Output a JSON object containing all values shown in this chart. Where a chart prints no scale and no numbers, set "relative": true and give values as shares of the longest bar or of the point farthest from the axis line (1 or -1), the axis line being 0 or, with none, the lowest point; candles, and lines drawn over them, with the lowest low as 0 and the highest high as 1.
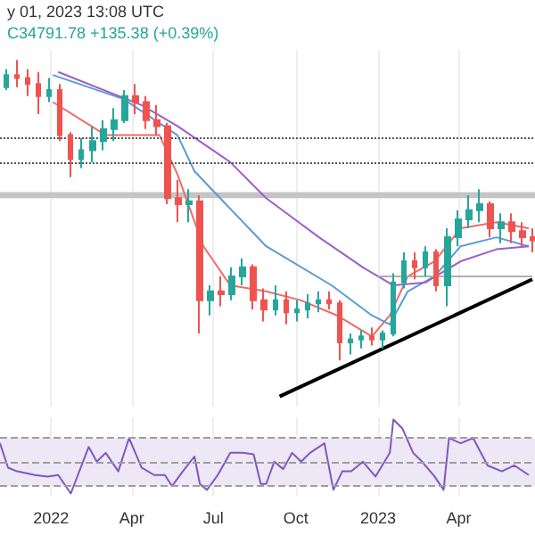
{
  "chart_data": [
    {
      "type": "candlestick",
      "relative": true,
      "annotations": [
        "y 01, 2023 13:08 UTC",
        "C34791.78 +135.38 (+0.39%)"
      ],
      "x": [
        "2021-11-12",
        "2021-11-24",
        "2021-12-06",
        "2021-12-18",
        "2021-12-30",
        "2022-01-11",
        "2022-01-23",
        "2022-02-04",
        "2022-02-16",
        "2022-02-28",
        "2022-03-12",
        "2022-03-24",
        "2022-04-05",
        "2022-04-17",
        "2022-04-29",
        "2022-05-11",
        "2022-05-23",
        "2022-06-04",
        "2022-06-16",
        "2022-06-28",
        "2022-07-10",
        "2022-07-22",
        "2022-08-03",
        "2022-08-15",
        "2022-08-27",
        "2022-09-08",
        "2022-09-20",
        "2022-10-02",
        "2022-10-14",
        "2022-10-26",
        "2022-11-07",
        "2022-11-19",
        "2022-12-01",
        "2022-12-13",
        "2022-12-25",
        "2023-01-06",
        "2023-01-18",
        "2023-01-30",
        "2023-02-11",
        "2023-02-23",
        "2023-03-07",
        "2023-03-19",
        "2023-03-31",
        "2023-04-12",
        "2023-04-24",
        "2023-05-06",
        "2023-05-18",
        "2023-05-30",
        "2023-06-11",
        "2023-06-23"
      ],
      "ohlc": [
        [
          0.91,
          0.97,
          0.9,
          0.95
        ],
        [
          0.95,
          1,
          0.91,
          0.94
        ],
        [
          0.94,
          0.97,
          0.88,
          0.92
        ],
        [
          0.92,
          0.96,
          0.82,
          0.88
        ],
        [
          0.88,
          0.94,
          0.86,
          0.9
        ],
        [
          0.9,
          0.92,
          0.73,
          0.75
        ],
        [
          0.75,
          0.76,
          0.61,
          0.67
        ],
        [
          0.67,
          0.74,
          0.64,
          0.7
        ],
        [
          0.7,
          0.78,
          0.66,
          0.73
        ],
        [
          0.73,
          0.8,
          0.7,
          0.77
        ],
        [
          0.77,
          0.84,
          0.73,
          0.8
        ],
        [
          0.8,
          0.9,
          0.79,
          0.88
        ],
        [
          0.88,
          0.92,
          0.82,
          0.86
        ],
        [
          0.86,
          0.88,
          0.77,
          0.8
        ],
        [
          0.8,
          0.85,
          0.75,
          0.78
        ],
        [
          0.78,
          0.79,
          0.52,
          0.54
        ],
        [
          0.54,
          0.6,
          0.46,
          0.52
        ],
        [
          0.52,
          0.57,
          0.46,
          0.53
        ],
        [
          0.53,
          0.55,
          0.09,
          0.2
        ],
        [
          0.2,
          0.25,
          0.15,
          0.23
        ],
        [
          0.23,
          0.28,
          0.18,
          0.22
        ],
        [
          0.22,
          0.31,
          0.2,
          0.28
        ],
        [
          0.28,
          0.34,
          0.25,
          0.31
        ],
        [
          0.31,
          0.32,
          0.17,
          0.2
        ],
        [
          0.2,
          0.24,
          0.13,
          0.17
        ],
        [
          0.17,
          0.25,
          0.15,
          0.2
        ],
        [
          0.2,
          0.23,
          0.12,
          0.16
        ],
        [
          0.16,
          0.2,
          0.13,
          0.17
        ],
        [
          0.17,
          0.22,
          0.14,
          0.19
        ],
        [
          0.19,
          0.23,
          0.16,
          0.2
        ],
        [
          0.2,
          0.23,
          0.17,
          0.19
        ],
        [
          0.19,
          0.2,
          0,
          0.06
        ],
        [
          0.06,
          0.09,
          0.02,
          0.07
        ],
        [
          0.07,
          0.1,
          0.04,
          0.08
        ],
        [
          0.08,
          0.11,
          0.05,
          0.07
        ],
        [
          0.07,
          0.1,
          0.04,
          0.09
        ],
        [
          0.09,
          0.29,
          0.08,
          0.26
        ],
        [
          0.26,
          0.36,
          0.24,
          0.33
        ],
        [
          0.33,
          0.36,
          0.27,
          0.31
        ],
        [
          0.31,
          0.38,
          0.28,
          0.36
        ],
        [
          0.36,
          0.37,
          0.23,
          0.25
        ],
        [
          0.25,
          0.44,
          0.18,
          0.41
        ],
        [
          0.41,
          0.5,
          0.38,
          0.47
        ],
        [
          0.47,
          0.55,
          0.44,
          0.5
        ],
        [
          0.5,
          0.57,
          0.46,
          0.52
        ],
        [
          0.52,
          0.53,
          0.41,
          0.44
        ],
        [
          0.44,
          0.49,
          0.39,
          0.46
        ],
        [
          0.46,
          0.49,
          0.39,
          0.43
        ],
        [
          0.43,
          0.46,
          0.38,
          0.41
        ],
        [
          0.41,
          0.44,
          0.36,
          0.4
        ]
      ],
      "colors": [
        "#26a69a",
        "#ef5350",
        "#ef5350",
        "#ef5350",
        "#26a69a",
        "#ef5350",
        "#ef5350",
        "#26a69a",
        "#26a69a",
        "#26a69a",
        "#26a69a",
        "#26a69a",
        "#ef5350",
        "#ef5350",
        "#ef5350",
        "#ef5350",
        "#ef5350",
        "#26a69a",
        "#ef5350",
        "#26a69a",
        "#ef5350",
        "#26a69a",
        "#26a69a",
        "#ef5350",
        "#ef5350",
        "#26a69a",
        "#ef5350",
        "#26a69a",
        "#26a69a",
        "#26a69a",
        "#ef5350",
        "#ef5350",
        "#26a69a",
        "#26a69a",
        "#ef5350",
        "#26a69a",
        "#26a69a",
        "#26a69a",
        "#ef5350",
        "#26a69a",
        "#ef5350",
        "#26a69a",
        "#26a69a",
        "#26a69a",
        "#26a69a",
        "#ef5350",
        "#26a69a",
        "#ef5350",
        "#ef5350",
        "#ef5350"
      ],
      "series": [
        {
          "type": "line",
          "color": "#f06a6a",
          "x": [
            "2022-01-03",
            "2022-03-03",
            "2022-05-02",
            "2022-05-22",
            "2022-06-20",
            "2022-07-20",
            "2022-08-29",
            "2022-10-07",
            "2022-11-16",
            "2022-12-25",
            "2023-01-14",
            "2023-02-03",
            "2023-03-05",
            "2023-04-03",
            "2023-05-13",
            "2023-06-18"
          ],
          "values": [
            0.86,
            0.75,
            0.75,
            0.62,
            0.38,
            0.25,
            0.23,
            0.2,
            0.15,
            0.08,
            0.15,
            0.28,
            0.33,
            0.44,
            0.46,
            0.44
          ]
        },
        {
          "type": "line",
          "color": "#5b9bd5",
          "x": [
            "2022-01-03",
            "2022-03-23",
            "2022-05-22",
            "2022-06-10",
            "2022-08-29",
            "2022-11-10",
            "2022-12-25",
            "2023-01-14",
            "2023-02-03",
            "2023-03-05",
            "2023-04-03",
            "2023-05-13",
            "2023-06-18"
          ],
          "values": [
            0.95,
            0.87,
            0.75,
            0.63,
            0.38,
            0.25,
            0.15,
            0.12,
            0.23,
            0.28,
            0.38,
            0.41,
            0.38
          ]
        },
        {
          "type": "line",
          "color": "#9c5fc9",
          "x": [
            "2022-01-09",
            "2022-04-12",
            "2022-05-22",
            "2022-07-20",
            "2022-08-29",
            "2022-10-27",
            "2022-12-15",
            "2023-01-18",
            "2023-02-23",
            "2023-04-03",
            "2023-05-13",
            "2023-06-18"
          ],
          "values": [
            0.96,
            0.85,
            0.78,
            0.66,
            0.54,
            0.41,
            0.31,
            0.25,
            0.26,
            0.33,
            0.37,
            0.38
          ]
        },
        {
          "type": "line",
          "color": "#000000",
          "x": [
            "2022-09-13",
            "2023-06-22"
          ],
          "values": [
            -0.12,
            0.27
          ]
        },
        {
          "type": "line",
          "color": "#b0b0b0",
          "x": [
            "2023-01-01",
            "2023-06-22"
          ],
          "values": [
            0.28,
            0.28
          ]
        }
      ],
      "xlim": [
        "2021-11-05",
        "2023-06-25"
      ],
      "xticks": [
        {
          "value": "2022-01-01",
          "label": null
        },
        {
          "value": "2022-04-01",
          "label": null
        },
        {
          "value": "2022-07-01",
          "label": null
        },
        {
          "value": "2022-10-01",
          "label": null
        },
        {
          "value": "2023-01-01",
          "label": null
        },
        {
          "value": "2023-04-01",
          "label": null
        }
      ],
      "tick_labels": false,
      "grid": "x",
      "ref_lines": [
        {
          "axis": "y",
          "value": 0.74,
          "color": "#555555",
          "line_style": "dotted"
        },
        {
          "axis": "y",
          "value": 0.66,
          "color": "#555555",
          "line_style": "dotted"
        }
      ],
      "bands": [
        {
          "axis": "y",
          "from": 0.54,
          "to": 0.56,
          "color": "#c4c4c4"
        }
      ]
    },
    {
      "type": "line",
      "relative": true,
      "series": [
        {
          "color": "#7e57c2",
          "x": [
            "2021-11-05",
            "2021-11-14",
            "2021-11-24",
            "2021-12-14",
            "2021-12-28",
            "2022-01-09",
            "2022-01-23",
            "2022-02-12",
            "2022-02-21",
            "2022-03-03",
            "2022-03-17",
            "2022-03-29",
            "2022-04-12",
            "2022-04-26",
            "2022-05-08",
            "2022-05-16",
            "2022-05-28",
            "2022-06-10",
            "2022-06-16",
            "2022-06-24",
            "2022-07-06",
            "2022-07-20",
            "2022-08-03",
            "2022-08-15",
            "2022-08-23",
            "2022-08-29",
            "2022-09-07",
            "2022-09-17",
            "2022-09-27",
            "2022-10-07",
            "2022-10-17",
            "2022-11-02",
            "2022-11-12",
            "2022-11-22",
            "2022-12-02",
            "2022-12-15",
            "2022-12-29",
            "2023-01-14",
            "2023-01-18",
            "2023-01-28",
            "2023-02-09",
            "2023-02-19",
            "2023-03-05",
            "2023-03-15",
            "2023-03-21",
            "2023-04-03",
            "2023-04-17",
            "2023-05-03",
            "2023-05-19",
            "2023-06-02",
            "2023-06-18"
          ],
          "values": [
            0.68,
            0.35,
            0.3,
            0.25,
            0.23,
            0.25,
            0,
            0.63,
            0.43,
            0.55,
            0.3,
            0.75,
            0.35,
            0.25,
            0.25,
            0.1,
            0.3,
            0.5,
            0.13,
            0.05,
            0.25,
            0.55,
            0.55,
            0.53,
            0.13,
            0.13,
            0.43,
            0.33,
            0.55,
            0.43,
            0.55,
            0.68,
            0.05,
            0.3,
            0.3,
            0.43,
            0.23,
            0.55,
            1,
            0.88,
            0.55,
            0.43,
            0.23,
            0.05,
            0.75,
            0.68,
            0.75,
            0.38,
            0.3,
            0.38,
            0.25
          ]
        }
      ],
      "xlim": [
        "2021-11-05",
        "2023-06-25"
      ],
      "xticks": [
        {
          "value": "2022-01-01",
          "label": "2022"
        },
        {
          "value": "2022-04-01",
          "label": "Apr"
        },
        {
          "value": "2022-07-01",
          "label": "Jul"
        },
        {
          "value": "2022-10-01",
          "label": "Oct"
        },
        {
          "value": "2023-01-01",
          "label": "2023"
        },
        {
          "value": "2023-04-01",
          "label": "Apr"
        }
      ],
      "tick_labels": "x",
      "grid": "x",
      "ref_lines": [
        {
          "axis": "y",
          "value": 0.75,
          "color": "#9e9e9e",
          "line_style": "dashed"
        },
        {
          "axis": "y",
          "value": 0.425,
          "color": "#9e9e9e",
          "line_style": "dashed"
        },
        {
          "axis": "y",
          "value": 0.1,
          "color": "#9e9e9e",
          "line_style": "dashed"
        }
      ],
      "bands": [
        {
          "axis": "y",
          "from": 0.1,
          "to": 0.75,
          "color": "#ede7f6"
        }
      ]
    }
  ]
}
